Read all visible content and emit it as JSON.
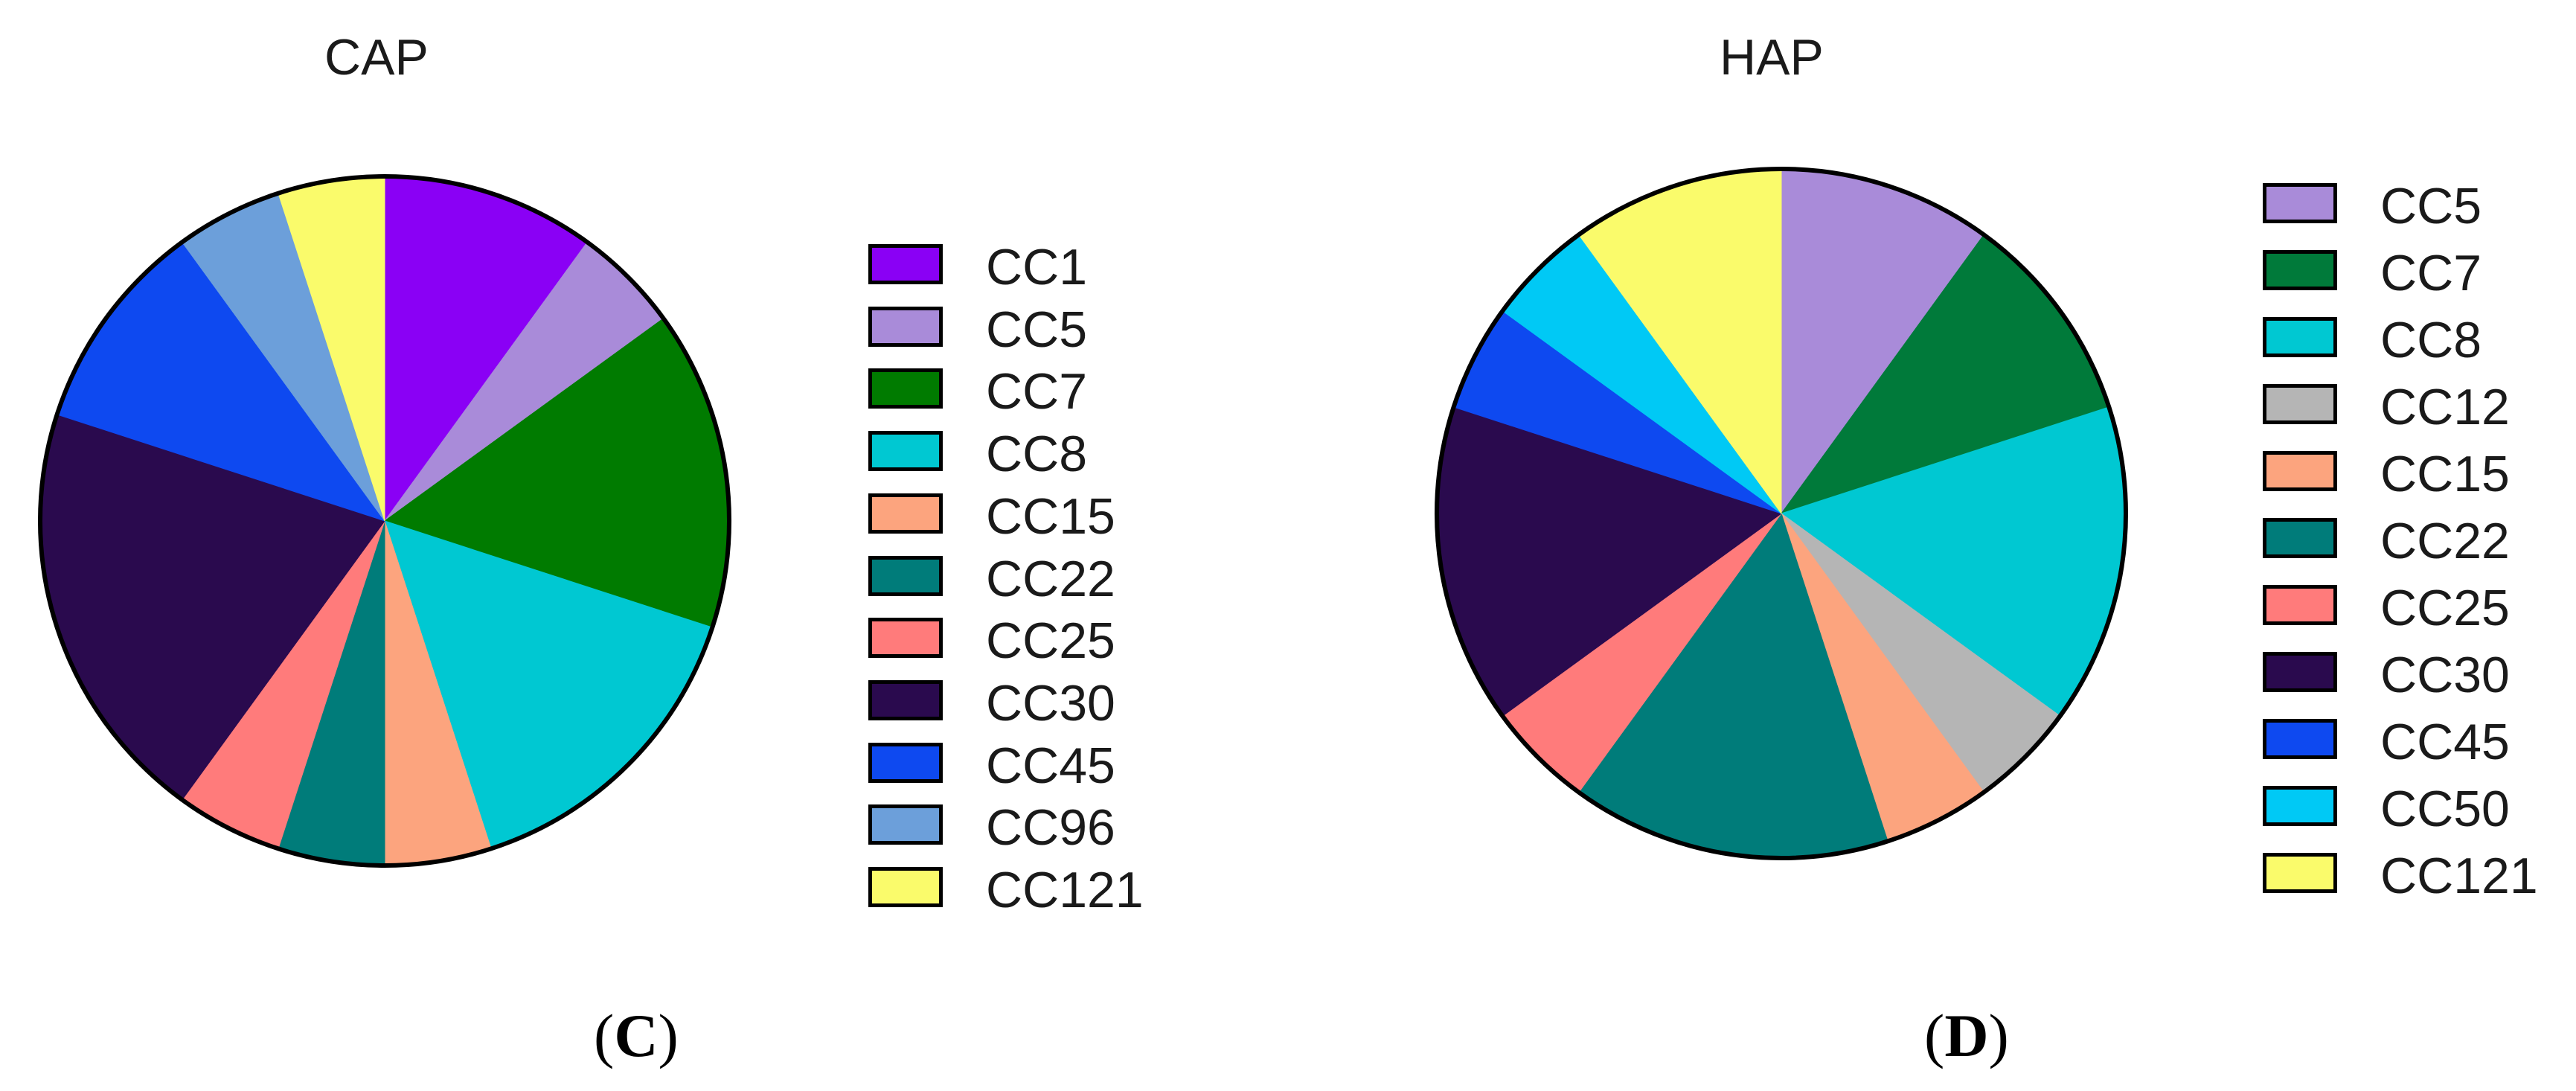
{
  "chart_data": [
    {
      "type": "pie",
      "title": "CAP",
      "panel_label": "C",
      "legend_placement": "right",
      "slices": [
        {
          "label": "CC1",
          "value": 10,
          "color": "#8A00F5"
        },
        {
          "label": "CC5",
          "value": 5,
          "color": "#A98BD9"
        },
        {
          "label": "CC7",
          "value": 15,
          "color": "#007B00"
        },
        {
          "label": "CC8",
          "value": 15,
          "color": "#00C8D2"
        },
        {
          "label": "CC15",
          "value": 5,
          "color": "#FCA47E"
        },
        {
          "label": "CC22",
          "value": 5,
          "color": "#007C7A"
        },
        {
          "label": "CC25",
          "value": 5,
          "color": "#FF7B7B"
        },
        {
          "label": "CC30",
          "value": 20,
          "color": "#2A0A4E"
        },
        {
          "label": "CC45",
          "value": 10,
          "color": "#0E49F0"
        },
        {
          "label": "CC96",
          "value": 5,
          "color": "#6C9FDA"
        },
        {
          "label": "CC121",
          "value": 5,
          "color": "#FAFB6B"
        }
      ]
    },
    {
      "type": "pie",
      "title": "HAP",
      "panel_label": "D",
      "legend_placement": "right",
      "slices": [
        {
          "label": "CC5",
          "value": 10,
          "color": "#A98BD9"
        },
        {
          "label": "CC7",
          "value": 10,
          "color": "#007A3A"
        },
        {
          "label": "CC8",
          "value": 15,
          "color": "#00C8D2"
        },
        {
          "label": "CC12",
          "value": 5,
          "color": "#B5B5B5"
        },
        {
          "label": "CC15",
          "value": 5,
          "color": "#FCA47E"
        },
        {
          "label": "CC22",
          "value": 15,
          "color": "#007C7A"
        },
        {
          "label": "CC25",
          "value": 5,
          "color": "#FF7B7B"
        },
        {
          "label": "CC30",
          "value": 15,
          "color": "#2A0A4E"
        },
        {
          "label": "CC45",
          "value": 5,
          "color": "#0E49F0"
        },
        {
          "label": "CC50",
          "value": 5,
          "color": "#00C9F5"
        },
        {
          "label": "CC121",
          "value": 10,
          "color": "#FAFB6B"
        }
      ]
    }
  ]
}
